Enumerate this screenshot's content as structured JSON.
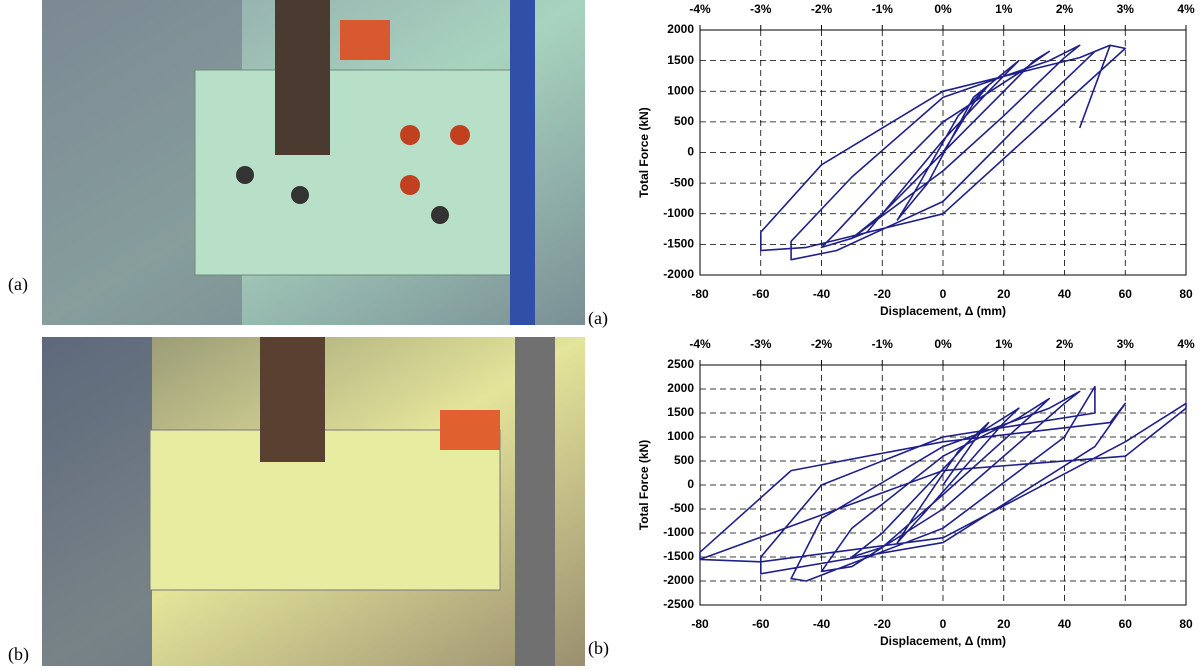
{
  "photo_labels": [
    "(a)",
    "(b)"
  ],
  "chart_data": [
    {
      "type": "line",
      "panel_label": "(a)",
      "ylabel": "Total Force (kN)",
      "xlabel": "Displacement, Δ (mm)",
      "xlim": [
        -80,
        80
      ],
      "xticks": [
        -80,
        -60,
        -40,
        -20,
        0,
        20,
        40,
        60,
        80
      ],
      "ylim": [
        -2000,
        2000
      ],
      "yticks": [
        -2000,
        -1500,
        -1000,
        -500,
        0,
        500,
        1000,
        1500,
        2000
      ],
      "x2lim": [
        -4,
        4
      ],
      "x2ticks": [
        {
          "value": -4,
          "label": "-4%"
        },
        {
          "value": -3,
          "label": "-3%"
        },
        {
          "value": -2,
          "label": "-2%"
        },
        {
          "value": -1,
          "label": "-1%"
        },
        {
          "value": 0,
          "label": "0%"
        },
        {
          "value": 1,
          "label": "1%"
        },
        {
          "value": 2,
          "label": "2%"
        },
        {
          "value": 3,
          "label": "3%"
        },
        {
          "value": 4,
          "label": "4%"
        }
      ],
      "grid": true,
      "color": "#20208a",
      "x": [
        0,
        10,
        15,
        5,
        -10,
        -15,
        -5,
        10,
        20,
        25,
        15,
        0,
        -20,
        -25,
        -30,
        -20,
        0,
        20,
        30,
        35,
        25,
        0,
        -20,
        -35,
        -40,
        -30,
        0,
        20,
        40,
        45,
        35,
        0,
        -30,
        -50,
        -50,
        -35,
        0,
        30,
        50,
        55,
        45,
        0,
        -40,
        -60,
        -60,
        -45,
        0,
        40,
        60,
        55,
        45
      ],
      "values": [
        0,
        800,
        1100,
        600,
        -700,
        -1100,
        -500,
        900,
        1300,
        1500,
        1000,
        200,
        -1000,
        -1300,
        -1400,
        -1000,
        0,
        1000,
        1500,
        1650,
        1300,
        500,
        -500,
        -1300,
        -1550,
        -1400,
        -300,
        600,
        1550,
        1750,
        1500,
        900,
        -400,
        -1450,
        -1750,
        -1600,
        -800,
        700,
        1650,
        1750,
        1550,
        1000,
        -200,
        -1300,
        -1600,
        -1550,
        -1000,
        800,
        1700,
        1750,
        400
      ]
    },
    {
      "type": "line",
      "panel_label": "(b)",
      "ylabel": "Total Force (kN)",
      "xlabel": "Displacement, Δ (mm)",
      "xlim": [
        -80,
        80
      ],
      "xticks": [
        -80,
        -60,
        -40,
        -20,
        0,
        20,
        40,
        60,
        80
      ],
      "ylim": [
        -2500,
        2500
      ],
      "yticks": [
        -2500,
        -2000,
        -1500,
        -1000,
        -500,
        0,
        500,
        1000,
        1500,
        2000,
        2500
      ],
      "x2lim": [
        -4,
        4
      ],
      "x2ticks": [
        {
          "value": -4,
          "label": "-4%"
        },
        {
          "value": -3,
          "label": "-3%"
        },
        {
          "value": -2,
          "label": "-2%"
        },
        {
          "value": -1,
          "label": "-1%"
        },
        {
          "value": 0,
          "label": "0%"
        },
        {
          "value": 1,
          "label": "1%"
        },
        {
          "value": 2,
          "label": "2%"
        },
        {
          "value": 3,
          "label": "3%"
        },
        {
          "value": 4,
          "label": "4%"
        }
      ],
      "grid": true,
      "color": "#20208a",
      "x": [
        0,
        10,
        15,
        5,
        -10,
        -15,
        -5,
        20,
        25,
        10,
        -20,
        -30,
        -20,
        0,
        30,
        35,
        25,
        0,
        -30,
        -40,
        -30,
        0,
        40,
        45,
        35,
        0,
        -40,
        -50,
        -45,
        0,
        40,
        50,
        50,
        0,
        -40,
        -60,
        -60,
        0,
        50,
        60,
        55,
        0,
        -50,
        -80,
        -80,
        -60,
        0,
        60,
        80,
        80,
        60,
        0,
        -80
      ],
      "values": [
        0,
        900,
        1300,
        700,
        -700,
        -1200,
        -500,
        1300,
        1600,
        1000,
        -1000,
        -1500,
        -1300,
        -200,
        1500,
        1800,
        1400,
        600,
        -900,
        -1800,
        -1700,
        -500,
        1700,
        1950,
        1600,
        800,
        -700,
        -1950,
        -2000,
        -900,
        1000,
        2050,
        1500,
        1000,
        0,
        -1500,
        -1850,
        -1200,
        800,
        1700,
        1300,
        900,
        300,
        -1400,
        -1550,
        -1600,
        -1100,
        900,
        1700,
        1600,
        600,
        300,
        -1550
      ]
    }
  ]
}
